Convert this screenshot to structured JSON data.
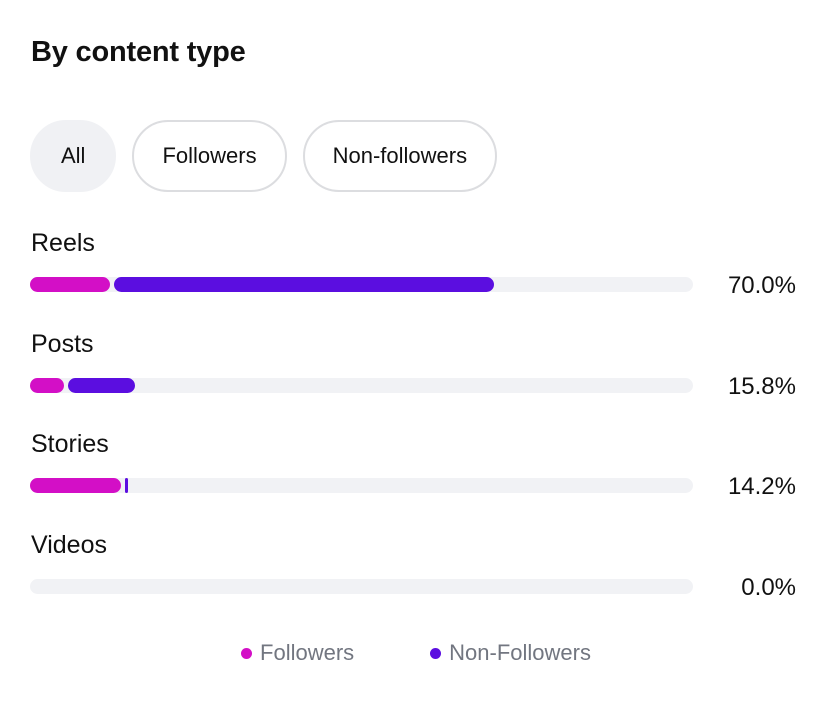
{
  "title": "By content type",
  "filters": [
    {
      "label": "All",
      "active": true
    },
    {
      "label": "Followers",
      "active": false
    },
    {
      "label": "Non-followers",
      "active": false
    }
  ],
  "colors": {
    "followers": "#d30fc6",
    "non_followers": "#5b0ee0",
    "track": "#f1f2f5"
  },
  "chart_data": {
    "type": "bar",
    "orientation": "horizontal",
    "stacked": true,
    "categories": [
      "Reels",
      "Posts",
      "Stories",
      "Videos"
    ],
    "totals": [
      70.0,
      15.8,
      14.2,
      0.0
    ],
    "total_labels": [
      "70.0%",
      "15.8%",
      "14.2%",
      "0.0%"
    ],
    "series": [
      {
        "name": "Followers",
        "values": [
          12.0,
          5.2,
          13.8,
          0.0
        ]
      },
      {
        "name": "Non-Followers",
        "values": [
          58.0,
          10.6,
          0.4,
          0.0
        ]
      }
    ],
    "xlim": [
      0,
      100
    ],
    "legend": {
      "position": "bottom",
      "entries": [
        "Followers",
        "Non-Followers"
      ]
    }
  }
}
